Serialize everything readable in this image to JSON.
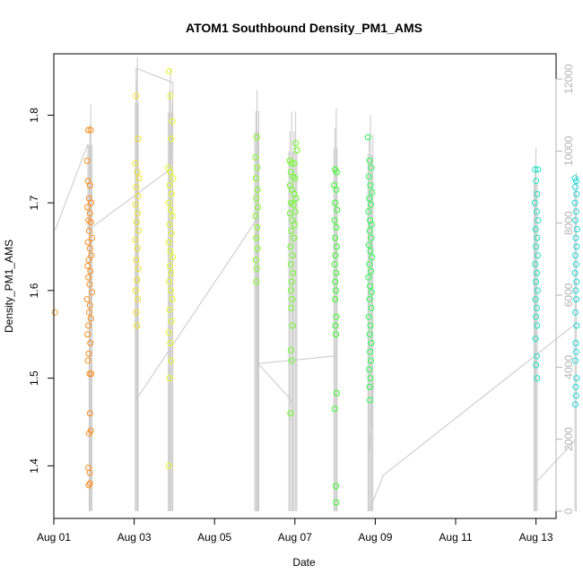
{
  "chart_data": {
    "type": "scatter",
    "title": "ATOM1 Southbound Density_PM1_AMS",
    "xlabel": "Date",
    "ylabel": "Density_PM1_AMS",
    "xlim": [
      "2019-08-01T00:00",
      "2019-08-13T12:00"
    ],
    "ylim": [
      1.34,
      1.87
    ],
    "y2lim": [
      -200,
      12700
    ],
    "x_ticks": [
      "Aug 01",
      "Aug 03",
      "Aug 05",
      "Aug 07",
      "Aug 09",
      "Aug 11",
      "Aug 13"
    ],
    "x_tick_dates": [
      "2019-08-01",
      "2019-08-03",
      "2019-08-05",
      "2019-08-07",
      "2019-08-09",
      "2019-08-11",
      "2019-08-13"
    ],
    "y_ticks": [
      "1.4",
      "1.5",
      "1.6",
      "1.7",
      "1.8"
    ],
    "y2_ticks": [
      "0",
      "2000",
      "4000",
      "6000",
      "8000",
      "10000",
      "12000"
    ],
    "grid": false,
    "legend": "none",
    "colors": {
      "series_line": "#c8c8c8",
      "right_axis": "#b3b3b3",
      "points_palette": [
        "#ff8c1a",
        "#f0c020",
        "#e6ff1a",
        "#7cff1a",
        "#2eff33",
        "#1affa8",
        "#1ae6c8"
      ]
    },
    "point_series": [
      {
        "color": "#f5a020",
        "points": [
          [
            0.03,
            1.575
          ]
        ]
      },
      {
        "color": "#ff8c1a",
        "points": [
          [
            0.83,
            1.748
          ],
          [
            0.86,
            1.783
          ],
          [
            0.92,
            1.783
          ],
          [
            0.85,
            1.725
          ],
          [
            0.9,
            1.72
          ],
          [
            0.88,
            1.705
          ],
          [
            0.93,
            1.7
          ],
          [
            0.84,
            1.695
          ],
          [
            0.9,
            1.688
          ],
          [
            0.86,
            1.68
          ],
          [
            0.92,
            1.678
          ],
          [
            0.88,
            1.668
          ],
          [
            0.95,
            1.66
          ],
          [
            0.85,
            1.655
          ],
          [
            0.9,
            1.648
          ],
          [
            0.93,
            1.64
          ],
          [
            0.87,
            1.635
          ],
          [
            0.84,
            1.628
          ],
          [
            0.91,
            1.622
          ],
          [
            0.86,
            1.615
          ],
          [
            0.89,
            1.607
          ],
          [
            0.95,
            1.598
          ],
          [
            0.83,
            1.59
          ],
          [
            0.9,
            1.583
          ],
          [
            0.88,
            1.575
          ],
          [
            0.92,
            1.568
          ],
          [
            0.86,
            1.56
          ],
          [
            0.84,
            1.55
          ],
          [
            0.91,
            1.54
          ],
          [
            0.87,
            1.528
          ],
          [
            0.85,
            1.52
          ],
          [
            0.89,
            1.505
          ],
          [
            0.93,
            1.505
          ],
          [
            0.9,
            1.46
          ],
          [
            0.92,
            1.44
          ],
          [
            0.88,
            1.437
          ],
          [
            0.86,
            1.398
          ],
          [
            0.89,
            1.392
          ],
          [
            0.9,
            1.38
          ],
          [
            0.87,
            1.378
          ]
        ]
      },
      {
        "color": "#f2e01a",
        "points": [
          [
            2.05,
            1.822
          ],
          [
            2.1,
            1.773
          ],
          [
            2.03,
            1.745
          ],
          [
            2.08,
            1.735
          ],
          [
            2.12,
            1.728
          ],
          [
            2.05,
            1.718
          ],
          [
            2.1,
            1.708
          ],
          [
            2.04,
            1.698
          ],
          [
            2.09,
            1.688
          ],
          [
            2.06,
            1.678
          ],
          [
            2.11,
            1.668
          ],
          [
            2.03,
            1.658
          ],
          [
            2.08,
            1.648
          ],
          [
            2.05,
            1.635
          ],
          [
            2.1,
            1.625
          ],
          [
            2.07,
            1.612
          ],
          [
            2.04,
            1.6
          ],
          [
            2.09,
            1.59
          ],
          [
            2.05,
            1.575
          ],
          [
            2.07,
            1.56
          ]
        ]
      },
      {
        "color": "#e6ff1a",
        "points": [
          [
            2.87,
            1.85
          ],
          [
            2.9,
            1.822
          ],
          [
            2.95,
            1.793
          ],
          [
            2.92,
            1.773
          ],
          [
            2.85,
            1.74
          ],
          [
            2.9,
            1.735
          ],
          [
            2.97,
            1.728
          ],
          [
            2.88,
            1.72
          ],
          [
            2.93,
            1.71
          ],
          [
            2.86,
            1.7
          ],
          [
            2.91,
            1.692
          ],
          [
            2.95,
            1.685
          ],
          [
            2.88,
            1.675
          ],
          [
            2.93,
            1.665
          ],
          [
            2.86,
            1.655
          ],
          [
            2.9,
            1.645
          ],
          [
            2.96,
            1.638
          ],
          [
            2.89,
            1.628
          ],
          [
            2.92,
            1.62
          ],
          [
            2.87,
            1.61
          ],
          [
            2.91,
            1.6
          ],
          [
            2.95,
            1.59
          ],
          [
            2.88,
            1.578
          ],
          [
            2.93,
            1.565
          ],
          [
            2.86,
            1.552
          ],
          [
            2.9,
            1.54
          ],
          [
            2.92,
            1.52
          ],
          [
            2.88,
            1.5
          ],
          [
            2.86,
            1.4
          ]
        ]
      },
      {
        "color": "#80ff1a",
        "points": [
          [
            5.05,
            1.775
          ],
          [
            5.02,
            1.752
          ],
          [
            5.06,
            1.74
          ],
          [
            5.03,
            1.728
          ],
          [
            5.07,
            1.715
          ],
          [
            5.04,
            1.705
          ],
          [
            5.08,
            1.695
          ],
          [
            5.02,
            1.685
          ],
          [
            5.06,
            1.672
          ],
          [
            5.04,
            1.66
          ],
          [
            5.07,
            1.648
          ],
          [
            5.03,
            1.635
          ],
          [
            5.05,
            1.625
          ],
          [
            5.04,
            1.61
          ]
        ]
      },
      {
        "color": "#66ff1a",
        "points": [
          [
            5.87,
            1.748
          ],
          [
            5.92,
            1.745
          ],
          [
            5.98,
            1.745
          ],
          [
            6.02,
            1.768
          ],
          [
            6.05,
            1.76
          ],
          [
            5.9,
            1.735
          ],
          [
            5.95,
            1.73
          ],
          [
            6.0,
            1.728
          ],
          [
            5.88,
            1.72
          ],
          [
            5.93,
            1.715
          ],
          [
            5.98,
            1.71
          ],
          [
            6.03,
            1.705
          ],
          [
            5.9,
            1.7
          ],
          [
            5.96,
            1.698
          ],
          [
            6.01,
            1.69
          ],
          [
            5.88,
            1.688
          ],
          [
            5.94,
            1.68
          ],
          [
            5.99,
            1.675
          ],
          [
            5.91,
            1.668
          ],
          [
            5.97,
            1.66
          ],
          [
            5.89,
            1.65
          ],
          [
            5.94,
            1.64
          ],
          [
            5.9,
            1.63
          ],
          [
            5.95,
            1.62
          ],
          [
            5.92,
            1.61
          ],
          [
            5.9,
            1.6
          ],
          [
            5.93,
            1.59
          ],
          [
            5.91,
            1.58
          ],
          [
            5.94,
            1.56
          ],
          [
            5.9,
            1.532
          ],
          [
            5.92,
            1.52
          ],
          [
            5.89,
            1.46
          ]
        ]
      },
      {
        "color": "#33ff26",
        "points": [
          [
            7.0,
            1.738
          ],
          [
            7.04,
            1.735
          ],
          [
            6.98,
            1.72
          ],
          [
            7.03,
            1.715
          ],
          [
            7.0,
            1.7
          ],
          [
            7.05,
            1.692
          ],
          [
            6.99,
            1.68
          ],
          [
            7.03,
            1.672
          ],
          [
            7.0,
            1.66
          ],
          [
            7.04,
            1.65
          ],
          [
            7.01,
            1.64
          ],
          [
            6.99,
            1.63
          ],
          [
            7.03,
            1.62
          ],
          [
            7.0,
            1.61
          ],
          [
            7.02,
            1.6
          ],
          [
            7.0,
            1.59
          ],
          [
            7.03,
            1.57
          ],
          [
            7.01,
            1.56
          ],
          [
            7.02,
            1.55
          ],
          [
            7.04,
            1.483
          ],
          [
            6.99,
            1.465
          ],
          [
            7.02,
            1.377
          ],
          [
            7.03,
            1.358
          ]
        ]
      },
      {
        "color": "#26ff4d",
        "points": [
          [
            7.82,
            1.775
          ],
          [
            7.86,
            1.748
          ],
          [
            7.9,
            1.74
          ],
          [
            7.84,
            1.73
          ],
          [
            7.88,
            1.72
          ],
          [
            7.92,
            1.712
          ],
          [
            7.85,
            1.705
          ],
          [
            7.89,
            1.698
          ],
          [
            7.83,
            1.69
          ],
          [
            7.87,
            1.68
          ],
          [
            7.91,
            1.675
          ],
          [
            7.86,
            1.668
          ],
          [
            7.9,
            1.66
          ],
          [
            7.84,
            1.652
          ],
          [
            7.88,
            1.645
          ],
          [
            7.92,
            1.638
          ],
          [
            7.85,
            1.63
          ],
          [
            7.89,
            1.622
          ],
          [
            7.83,
            1.615
          ],
          [
            7.87,
            1.605
          ],
          [
            7.91,
            1.598
          ],
          [
            7.86,
            1.59
          ],
          [
            7.9,
            1.58
          ],
          [
            7.84,
            1.57
          ],
          [
            7.88,
            1.56
          ],
          [
            7.86,
            1.55
          ],
          [
            7.9,
            1.54
          ],
          [
            7.87,
            1.53
          ],
          [
            7.89,
            1.52
          ],
          [
            7.85,
            1.51
          ],
          [
            7.88,
            1.5
          ],
          [
            7.86,
            1.49
          ],
          [
            7.87,
            1.475
          ]
        ]
      },
      {
        "color": "#1ae6c0",
        "points": [
          [
            11.98,
            1.738
          ],
          [
            12.05,
            1.738
          ],
          [
            12.0,
            1.725
          ],
          [
            12.03,
            1.71
          ],
          [
            11.97,
            1.7
          ],
          [
            12.02,
            1.69
          ],
          [
            12.05,
            1.68
          ],
          [
            11.99,
            1.67
          ],
          [
            12.03,
            1.66
          ],
          [
            12.0,
            1.65
          ],
          [
            12.04,
            1.64
          ],
          [
            11.98,
            1.63
          ],
          [
            12.02,
            1.62
          ],
          [
            12.0,
            1.61
          ],
          [
            12.04,
            1.6
          ],
          [
            11.99,
            1.59
          ],
          [
            12.02,
            1.58
          ],
          [
            12.0,
            1.57
          ],
          [
            12.03,
            1.56
          ],
          [
            11.99,
            1.545
          ],
          [
            12.02,
            1.525
          ],
          [
            12.0,
            1.515
          ],
          [
            12.03,
            1.5
          ]
        ]
      },
      {
        "color": "#1ad9d9",
        "points": [
          [
            12.97,
            1.728
          ],
          [
            13.0,
            1.725
          ],
          [
            12.98,
            1.718
          ],
          [
            13.01,
            1.71
          ],
          [
            12.97,
            1.7
          ],
          [
            13.0,
            1.69
          ],
          [
            12.98,
            1.68
          ],
          [
            13.02,
            1.67
          ],
          [
            12.99,
            1.66
          ],
          [
            13.01,
            1.65
          ],
          [
            12.98,
            1.64
          ],
          [
            13.0,
            1.63
          ],
          [
            12.97,
            1.62
          ],
          [
            13.01,
            1.61
          ],
          [
            12.99,
            1.6
          ],
          [
            13.0,
            1.59
          ],
          [
            12.98,
            1.575
          ],
          [
            13.01,
            1.56
          ],
          [
            12.99,
            1.54
          ],
          [
            13.0,
            1.53
          ],
          [
            12.98,
            1.52
          ],
          [
            13.01,
            1.5
          ],
          [
            12.99,
            1.49
          ],
          [
            13.0,
            1.48
          ],
          [
            12.98,
            1.47
          ]
        ]
      }
    ],
    "spike_groups": [
      {
        "x": [
          0.88,
          0.9,
          0.92,
          0.95
        ],
        "y_top": 11300
      },
      {
        "x": [
          2.03,
          2.05,
          2.08,
          2.1
        ],
        "y_top": 12600
      },
      {
        "x": [
          2.85,
          2.88,
          2.9,
          2.93,
          2.96
        ],
        "y_top": 12300
      },
      {
        "x": [
          5.0,
          5.03,
          5.06,
          5.08,
          5.1
        ],
        "y_top": 11700
      },
      {
        "x": [
          5.85,
          5.88,
          5.92,
          5.95,
          5.98,
          6.02,
          6.05
        ],
        "y_top": 11100
      },
      {
        "x": [
          6.97,
          7.0,
          7.03,
          7.05
        ],
        "y_top": 11200
      },
      {
        "x": [
          7.82,
          7.85,
          7.88,
          7.91,
          7.94
        ],
        "y_top": 11000
      },
      {
        "x": [
          11.95,
          11.98,
          12.0,
          12.03
        ],
        "y_top": 10100
      },
      {
        "x": [
          12.97,
          13.0
        ],
        "y_top": 9900
      }
    ],
    "trace_lines": [
      {
        "x": [
          0.03,
          0.85,
          0.85
        ],
        "y": [
          7800,
          10200,
          7800
        ]
      },
      {
        "x": [
          0.85,
          2.9,
          2.97,
          2.05,
          2.05
        ],
        "y": [
          7800,
          9500,
          11900,
          12300,
          3100
        ]
      },
      {
        "x": [
          2.05,
          5.05
        ],
        "y": [
          3100,
          8100
        ]
      },
      {
        "x": [
          5.08,
          5.08,
          6.0,
          6.9,
          7.05
        ],
        "y": [
          6400,
          4100,
          4200,
          4300,
          4300
        ]
      },
      {
        "x": [
          5.08,
          5.9,
          5.92
        ],
        "y": [
          4100,
          3100,
          3000
        ]
      },
      {
        "x": [
          7.85,
          7.95,
          7.95
        ],
        "y": [
          1700,
          3600,
          3300
        ]
      },
      {
        "x": [
          7.85,
          8.2,
          12.98
        ],
        "y": [
          0,
          1000,
          5200
        ]
      },
      {
        "x": [
          12.0,
          13.0
        ],
        "y": [
          800,
          2000
        ]
      }
    ]
  }
}
